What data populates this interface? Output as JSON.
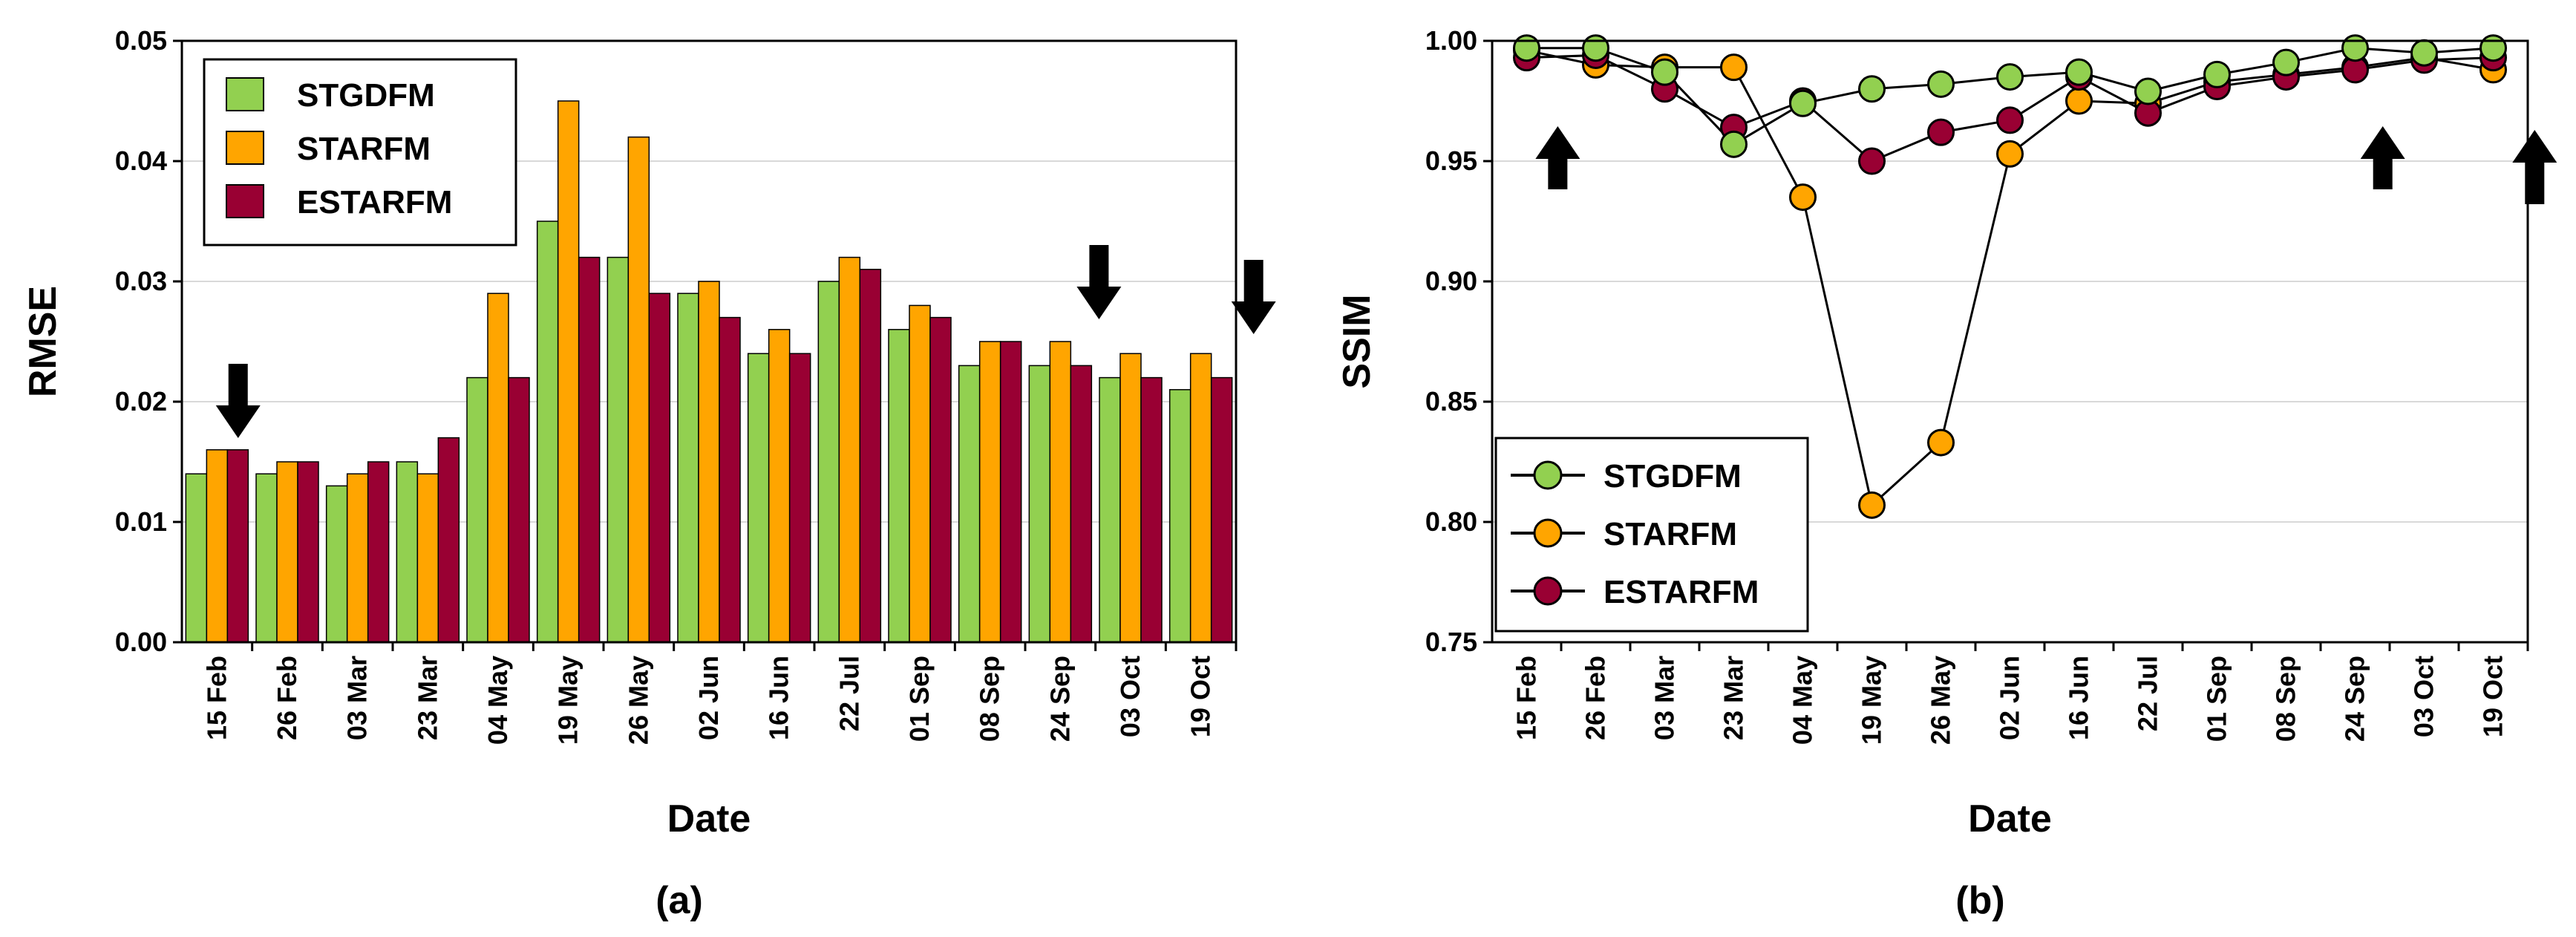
{
  "colors": {
    "STGDFM": "#92D050",
    "STARFM": "#FFA500",
    "ESTARFM": "#990033",
    "arrow": "#000000",
    "grid": "#D9D9D9"
  },
  "chart_data": [
    {
      "type": "bar",
      "panel_label": "(a)",
      "xlabel": "Date",
      "ylabel": "RMSE",
      "ylim": [
        0,
        0.05
      ],
      "yticks": [
        "0.00",
        "0.01",
        "0.02",
        "0.03",
        "0.04",
        "0.05"
      ],
      "grid": true,
      "legend_position": "top-left",
      "categories": [
        "15 Feb",
        "26 Feb",
        "03 Mar",
        "23 Mar",
        "04 May",
        "19 May",
        "26 May",
        "02 Jun",
        "16 Jun",
        "22 Jul",
        "01 Sep",
        "08 Sep",
        "24 Sep",
        "03 Oct",
        "19 Oct"
      ],
      "series": [
        {
          "name": "STGDFM",
          "values": [
            0.014,
            0.014,
            0.013,
            0.015,
            0.022,
            0.035,
            0.032,
            0.029,
            0.024,
            0.03,
            0.026,
            0.023,
            0.023,
            0.022,
            0.021
          ]
        },
        {
          "name": "STARFM",
          "values": [
            0.016,
            0.015,
            0.014,
            0.014,
            0.029,
            0.045,
            0.042,
            0.03,
            0.026,
            0.032,
            0.028,
            0.025,
            0.025,
            0.024,
            0.024
          ]
        },
        {
          "name": "ESTARFM",
          "values": [
            0.016,
            0.015,
            0.015,
            0.017,
            0.022,
            0.032,
            0.029,
            0.027,
            0.024,
            0.031,
            0.027,
            0.025,
            0.023,
            0.022,
            0.022
          ]
        }
      ],
      "annotations": [
        {
          "type": "arrow-down",
          "x": 0.3
        },
        {
          "type": "arrow-down",
          "x": 12.55
        },
        {
          "type": "arrow-down",
          "x": 14.75
        }
      ]
    },
    {
      "type": "line",
      "panel_label": "(b)",
      "xlabel": "Date",
      "ylabel": "SSIM",
      "ylim": [
        0.75,
        1.0
      ],
      "yticks": [
        "0.75",
        "0.80",
        "0.85",
        "0.90",
        "0.95",
        "1.00"
      ],
      "grid": true,
      "legend_position": "bottom-left",
      "categories": [
        "15 Feb",
        "26 Feb",
        "03 Mar",
        "23 Mar",
        "04 May",
        "19 May",
        "26 May",
        "02 Jun",
        "16 Jun",
        "22 Jul",
        "01 Sep",
        "08 Sep",
        "24 Sep",
        "03 Oct",
        "19 Oct"
      ],
      "series": [
        {
          "name": "STGDFM",
          "values": [
            0.997,
            0.997,
            0.987,
            0.957,
            0.974,
            0.98,
            0.982,
            0.985,
            0.987,
            0.979,
            0.986,
            0.991,
            0.997,
            0.995,
            0.997
          ]
        },
        {
          "name": "STARFM",
          "values": [
            0.996,
            0.99,
            0.989,
            0.989,
            0.935,
            0.807,
            0.833,
            0.953,
            0.975,
            0.974,
            0.983,
            0.986,
            0.989,
            0.993,
            0.988
          ]
        },
        {
          "name": "ESTARFM",
          "values": [
            0.993,
            0.994,
            0.98,
            0.964,
            0.975,
            0.95,
            0.962,
            0.967,
            0.985,
            0.97,
            0.981,
            0.985,
            0.988,
            0.992,
            0.993
          ]
        }
      ],
      "annotations": [
        {
          "type": "arrow-up",
          "x": 0.45
        },
        {
          "type": "arrow-up",
          "x": 12.4
        },
        {
          "type": "arrow-up",
          "x": 14.6
        }
      ]
    }
  ]
}
